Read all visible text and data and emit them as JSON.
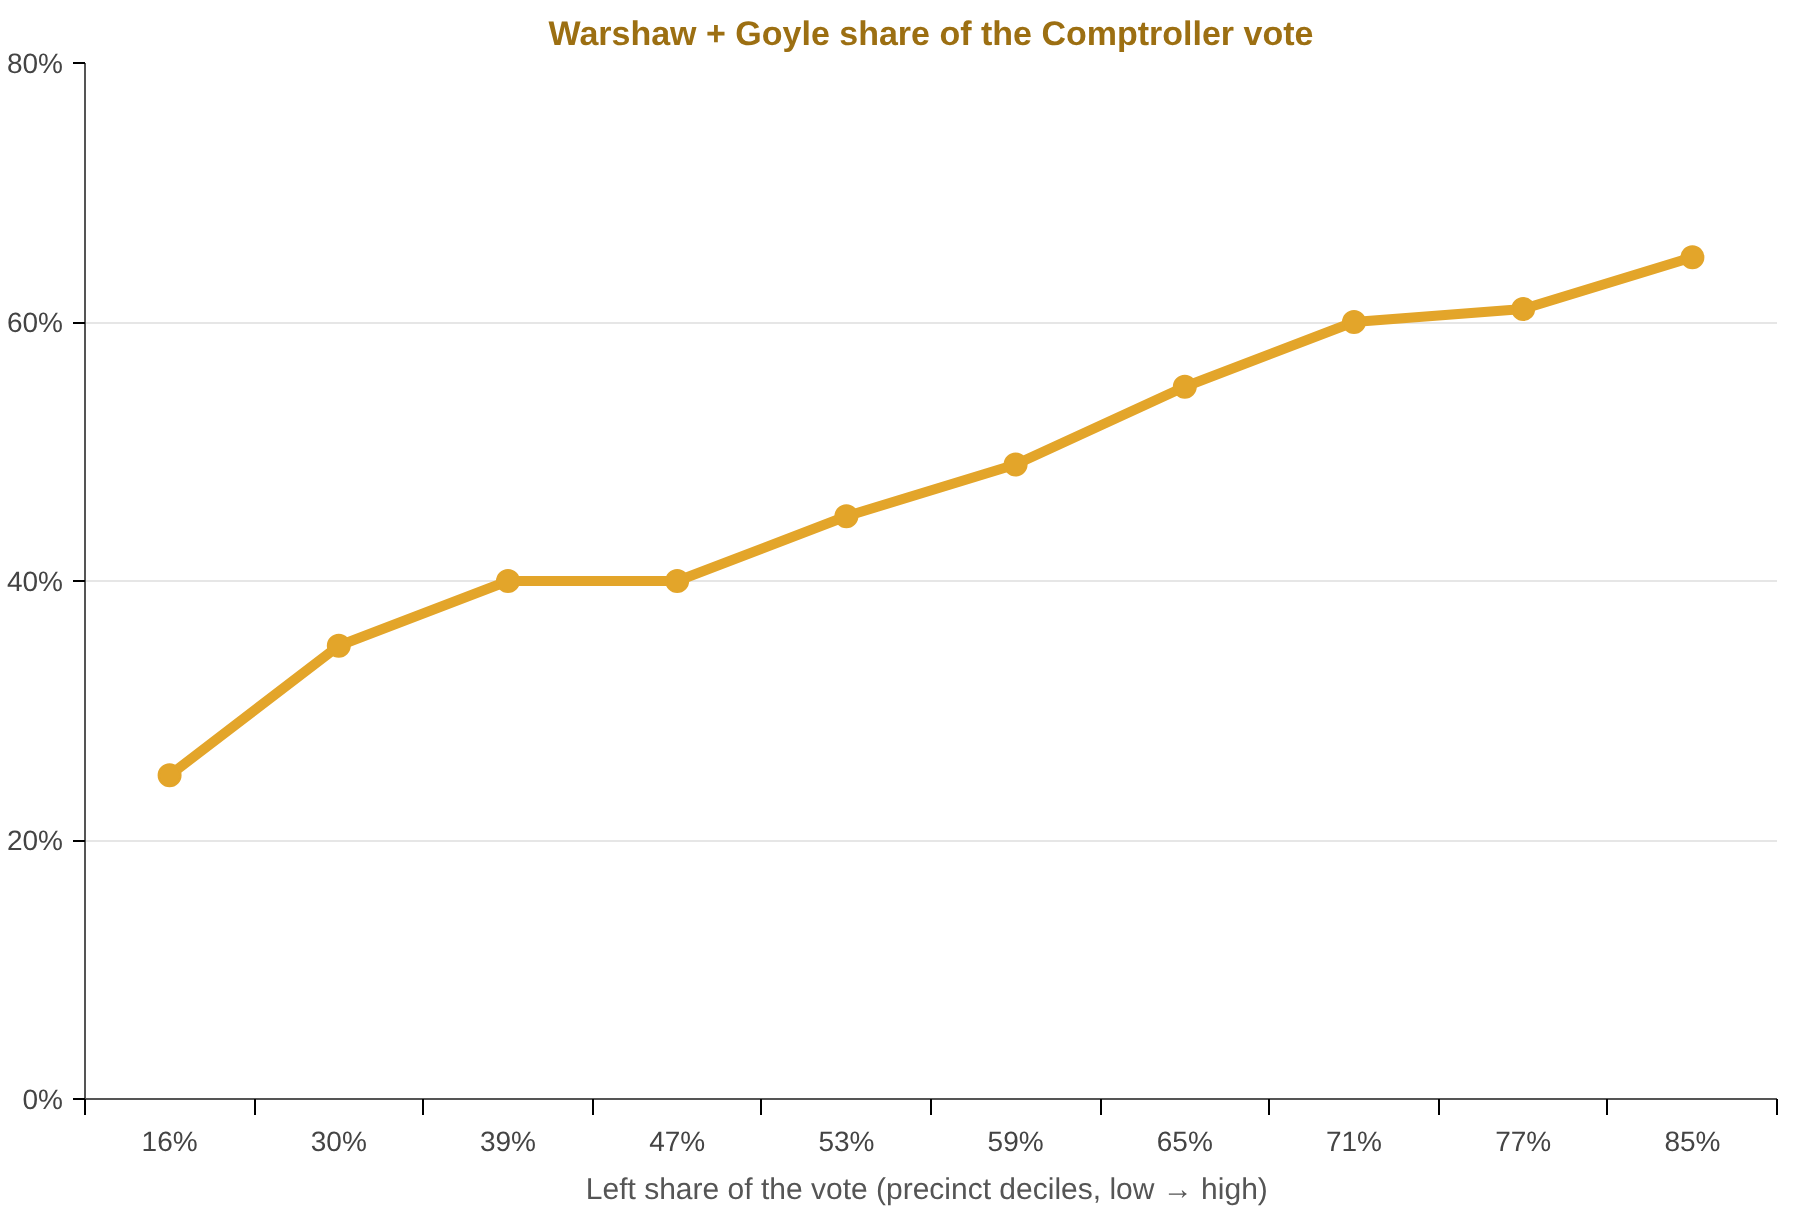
{
  "chart_data": {
    "type": "line",
    "title": "Warshaw + Goyle share of the Comptroller vote",
    "xlabel": "Left share of the vote  (precinct deciles, low → high)",
    "categories": [
      "16%",
      "30%",
      "39%",
      "47%",
      "53%",
      "59%",
      "65%",
      "71%",
      "77%",
      "85%"
    ],
    "series": [
      {
        "color": "#e3a52a",
        "values": [
          25,
          35,
          40,
          40,
          45,
          49,
          55,
          60,
          61,
          65
        ]
      }
    ],
    "ylim": [
      0,
      80
    ],
    "yticks": [
      {
        "value": 0,
        "label": "0%"
      },
      {
        "value": 20,
        "label": "20%"
      },
      {
        "value": 40,
        "label": "40%"
      },
      {
        "value": 60,
        "label": "60%"
      },
      {
        "value": 80,
        "label": "80%"
      }
    ],
    "grid": "y",
    "marker": "circle",
    "line_style": "solid"
  }
}
